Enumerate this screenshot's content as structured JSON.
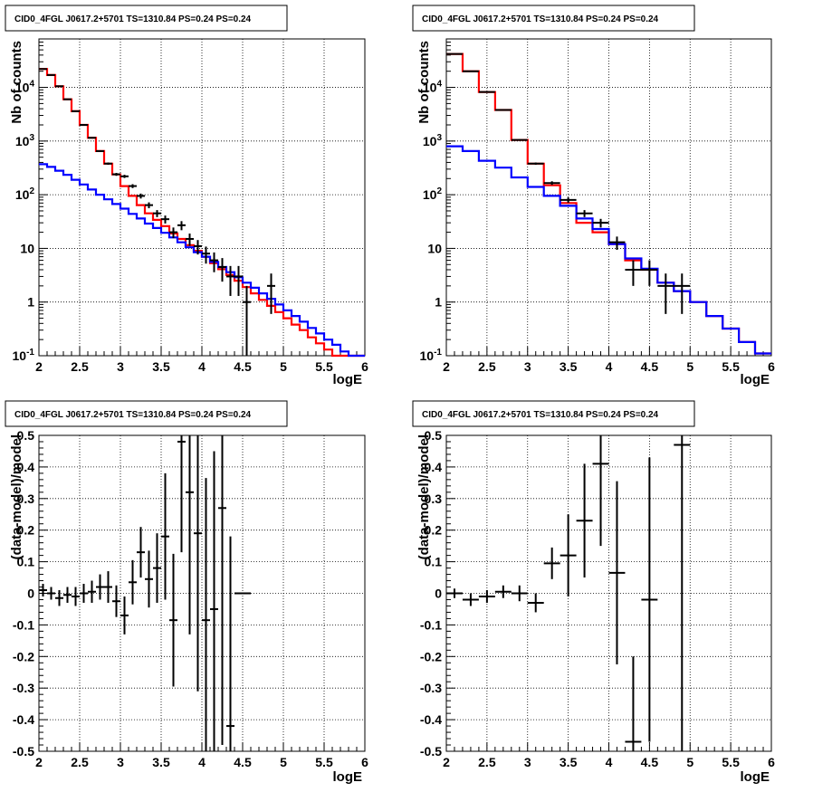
{
  "chart_data": [
    {
      "type": "line",
      "title": "CID0_4FGL J0617.2+5701 TS=1310.84 PS=0.24 PS=0.24",
      "xlabel": "logE",
      "ylabel": "Nb of counts",
      "xlim": [
        2,
        6
      ],
      "ylim": [
        0.1,
        80000
      ],
      "yscale": "log",
      "grid": true,
      "xticks": [
        "2",
        "2.5",
        "3",
        "3.5",
        "4",
        "4.5",
        "5",
        "5.5",
        "6"
      ],
      "yticks": [
        {
          "v": 0.1,
          "base": "10",
          "exp": "-1"
        },
        {
          "v": 1,
          "text": "1"
        },
        {
          "v": 10,
          "text": "10"
        },
        {
          "v": 100,
          "base": "10",
          "exp": "2"
        },
        {
          "v": 1000,
          "base": "10",
          "exp": "3"
        },
        {
          "v": 10000,
          "base": "10",
          "exp": "4"
        }
      ],
      "bin_width": 0.1,
      "series": [
        {
          "color": "#ff0000",
          "x": [
            2.0,
            2.1,
            2.2,
            2.3,
            2.4,
            2.5,
            2.6,
            2.7,
            2.8,
            2.9,
            3.0,
            3.1,
            3.2,
            3.3,
            3.4,
            3.5,
            3.6,
            3.7,
            3.8,
            3.9,
            4.0,
            4.1,
            4.2,
            4.3,
            4.4,
            4.5,
            4.6,
            4.7,
            4.8,
            4.9,
            5.0,
            5.1,
            5.2,
            5.3,
            5.4,
            5.5,
            5.6,
            5.7,
            5.8,
            5.9
          ],
          "y": [
            22000,
            17000,
            10500,
            6000,
            3600,
            2000,
            1150,
            650,
            380,
            240,
            145,
            95,
            64,
            45,
            34,
            26,
            19,
            15,
            11.5,
            9,
            7,
            5.3,
            4.1,
            3.2,
            2.5,
            1.9,
            1.45,
            1.1,
            0.85,
            0.65,
            0.5,
            0.38,
            0.3,
            0.22,
            0.17,
            0.13,
            0.1,
            0.1,
            0.1,
            0.1
          ]
        },
        {
          "color": "#0000ff",
          "x": [
            2.0,
            2.1,
            2.2,
            2.3,
            2.4,
            2.5,
            2.6,
            2.7,
            2.8,
            2.9,
            3.0,
            3.1,
            3.2,
            3.3,
            3.4,
            3.5,
            3.6,
            3.7,
            3.8,
            3.9,
            4.0,
            4.1,
            4.2,
            4.3,
            4.4,
            4.5,
            4.6,
            4.7,
            4.8,
            4.9,
            5.0,
            5.1,
            5.2,
            5.3,
            5.4,
            5.5,
            5.6,
            5.7,
            5.8,
            5.9
          ],
          "y": [
            370,
            330,
            280,
            235,
            190,
            155,
            125,
            100,
            82,
            67,
            55,
            44,
            36,
            29,
            24,
            19.5,
            16,
            13,
            10.5,
            8.5,
            7,
            5.6,
            4.5,
            3.6,
            2.9,
            2.3,
            1.85,
            1.45,
            1.15,
            0.9,
            0.7,
            0.55,
            0.43,
            0.33,
            0.26,
            0.2,
            0.16,
            0.12,
            0.1,
            0.1
          ]
        }
      ],
      "points": {
        "color": "#000000",
        "x": [
          2.05,
          2.15,
          2.25,
          2.35,
          2.45,
          2.55,
          2.65,
          2.75,
          2.85,
          2.95,
          3.05,
          3.15,
          3.25,
          3.35,
          3.45,
          3.55,
          3.65,
          3.75,
          3.85,
          3.95,
          4.05,
          4.15,
          4.25,
          4.35,
          4.45,
          4.55,
          4.85
        ],
        "y": [
          22000,
          17000,
          10500,
          6000,
          3600,
          2000,
          1150,
          650,
          380,
          240,
          220,
          145,
          95,
          64,
          45,
          35,
          20,
          27,
          15,
          11,
          8,
          6,
          4.5,
          3,
          3,
          1,
          2
        ],
        "yerr": [
          150,
          130,
          100,
          78,
          60,
          45,
          34,
          25,
          19,
          15,
          15,
          12,
          10,
          8,
          6.7,
          5.9,
          4.5,
          5.2,
          3.9,
          3.3,
          2.8,
          2.4,
          2.1,
          1.7,
          1.7,
          1,
          1.4
        ],
        "xerr": 0.05
      }
    },
    {
      "type": "line",
      "title": "CID0_4FGL J0617.2+5701 TS=1310.84 PS=0.24 PS=0.24",
      "xlabel": "logE",
      "ylabel": "Nb of counts",
      "xlim": [
        2,
        6
      ],
      "ylim": [
        0.1,
        80000
      ],
      "yscale": "log",
      "grid": true,
      "xticks": [
        "2",
        "2.5",
        "3",
        "3.5",
        "4",
        "4.5",
        "5",
        "5.5",
        "6"
      ],
      "yticks": [
        {
          "v": 0.1,
          "base": "10",
          "exp": "-1"
        },
        {
          "v": 1,
          "text": "1"
        },
        {
          "v": 10,
          "text": "10"
        },
        {
          "v": 100,
          "base": "10",
          "exp": "2"
        },
        {
          "v": 1000,
          "base": "10",
          "exp": "3"
        },
        {
          "v": 10000,
          "base": "10",
          "exp": "4"
        }
      ],
      "bin_width": 0.2,
      "series": [
        {
          "color": "#ff0000",
          "x": [
            2.0,
            2.2,
            2.4,
            2.6,
            2.8,
            3.0,
            3.2,
            3.4,
            3.6,
            3.8,
            4.0,
            4.2,
            4.4,
            4.6,
            4.8,
            5.0,
            5.2,
            5.4,
            5.6,
            5.8
          ],
          "y": [
            42000,
            20000,
            8200,
            3800,
            1050,
            380,
            150,
            70,
            30,
            20,
            12,
            6,
            4,
            2.3,
            1.6,
            1,
            0.55,
            0.32,
            0.18,
            0.11
          ]
        },
        {
          "color": "#0000ff",
          "x": [
            2.0,
            2.2,
            2.4,
            2.6,
            2.8,
            3.0,
            3.2,
            3.4,
            3.6,
            3.8,
            4.0,
            4.2,
            4.4,
            4.6,
            4.8,
            5.0,
            5.2,
            5.4,
            5.6,
            5.8
          ],
          "y": [
            800,
            650,
            430,
            320,
            210,
            140,
            95,
            62,
            36,
            23,
            12,
            6.5,
            4.2,
            2.3,
            1.6,
            1,
            0.55,
            0.32,
            0.18,
            0.11
          ]
        }
      ],
      "points": {
        "color": "#000000",
        "x": [
          2.1,
          2.3,
          2.5,
          2.7,
          2.9,
          3.1,
          3.3,
          3.5,
          3.7,
          3.9,
          4.1,
          4.3,
          4.5,
          4.7,
          4.9
        ],
        "y": [
          42000,
          20000,
          8200,
          3800,
          1050,
          380,
          165,
          80,
          45,
          30,
          13,
          4,
          4,
          2,
          2
        ],
        "yerr": [
          205,
          141,
          90,
          62,
          32,
          19,
          13,
          9,
          6.7,
          5.5,
          3.6,
          2,
          2,
          1.4,
          1.4
        ],
        "xerr": 0.1
      }
    },
    {
      "type": "scatter",
      "title": "CID0_4FGL J0617.2+5701 TS=1310.84 PS=0.24 PS=0.24",
      "xlabel": "logE",
      "ylabel": "(data-model)/model",
      "xlim": [
        2,
        6
      ],
      "ylim": [
        -0.5,
        0.5
      ],
      "grid": true,
      "xticks": [
        "2",
        "2.5",
        "3",
        "3.5",
        "4",
        "4.5",
        "5",
        "5.5",
        "6"
      ],
      "yticks": [
        {
          "v": -0.5,
          "text": "-0.5"
        },
        {
          "v": -0.4,
          "text": "-0.4"
        },
        {
          "v": -0.3,
          "text": "-0.3"
        },
        {
          "v": -0.2,
          "text": "-0.2"
        },
        {
          "v": -0.1,
          "text": "-0.1"
        },
        {
          "v": 0,
          "text": "0"
        },
        {
          "v": 0.1,
          "text": "0.1"
        },
        {
          "v": 0.2,
          "text": "0.2"
        },
        {
          "v": 0.3,
          "text": "0.3"
        },
        {
          "v": 0.4,
          "text": "0.4"
        },
        {
          "v": 0.5,
          "text": "0.5"
        }
      ],
      "points": {
        "color": "#000000",
        "x": [
          2.05,
          2.15,
          2.25,
          2.35,
          2.45,
          2.55,
          2.65,
          2.75,
          2.85,
          2.95,
          3.05,
          3.15,
          3.25,
          3.35,
          3.45,
          3.55,
          3.65,
          3.75,
          3.85,
          3.95,
          4.05,
          4.15,
          4.25,
          4.35,
          4.45,
          4.55
        ],
        "y": [
          0.01,
          0.0,
          -0.015,
          -0.005,
          -0.01,
          0.0,
          0.005,
          0.02,
          0.02,
          -0.025,
          -0.07,
          0.035,
          0.13,
          0.045,
          0.08,
          0.18,
          -0.085,
          0.48,
          0.32,
          0.19,
          -0.085,
          -0.05,
          0.27,
          -0.42,
          0.0,
          0.0
        ],
        "yerr": [
          0.02,
          0.02,
          0.025,
          0.025,
          0.03,
          0.03,
          0.035,
          0.04,
          0.05,
          0.05,
          0.06,
          0.07,
          0.08,
          0.09,
          0.11,
          0.2,
          0.21,
          0.35,
          0.45,
          0.5,
          0.45,
          0.5,
          0.75,
          0.6,
          0.0,
          0.0
        ],
        "xerr": 0.05
      }
    },
    {
      "type": "scatter",
      "title": "CID0_4FGL J0617.2+5701 TS=1310.84 PS=0.24 PS=0.24",
      "xlabel": "logE",
      "ylabel": "(data-model)/model",
      "xlim": [
        2,
        6
      ],
      "ylim": [
        -0.5,
        0.5
      ],
      "grid": true,
      "xticks": [
        "2",
        "2.5",
        "3",
        "3.5",
        "4",
        "4.5",
        "5",
        "5.5",
        "6"
      ],
      "yticks": [
        {
          "v": -0.5,
          "text": "-0.5"
        },
        {
          "v": -0.4,
          "text": "-0.4"
        },
        {
          "v": -0.3,
          "text": "-0.3"
        },
        {
          "v": -0.2,
          "text": "-0.2"
        },
        {
          "v": -0.1,
          "text": "-0.1"
        },
        {
          "v": 0,
          "text": "0"
        },
        {
          "v": 0.1,
          "text": "0.1"
        },
        {
          "v": 0.2,
          "text": "0.2"
        },
        {
          "v": 0.3,
          "text": "0.3"
        },
        {
          "v": 0.4,
          "text": "0.4"
        },
        {
          "v": 0.5,
          "text": "0.5"
        }
      ],
      "points": {
        "color": "#000000",
        "x": [
          2.1,
          2.3,
          2.5,
          2.7,
          2.9,
          3.1,
          3.3,
          3.5,
          3.7,
          3.9,
          4.1,
          4.3,
          4.5,
          4.9
        ],
        "y": [
          0.0,
          -0.02,
          -0.01,
          0.005,
          0.0,
          -0.03,
          0.095,
          0.12,
          0.23,
          0.41,
          0.065,
          -0.47,
          -0.02,
          0.47
        ],
        "yerr": [
          0.015,
          0.02,
          0.02,
          0.02,
          0.025,
          0.03,
          0.05,
          0.13,
          0.18,
          0.26,
          0.29,
          0.27,
          0.45,
          0.97
        ],
        "xerr": 0.1
      }
    }
  ]
}
